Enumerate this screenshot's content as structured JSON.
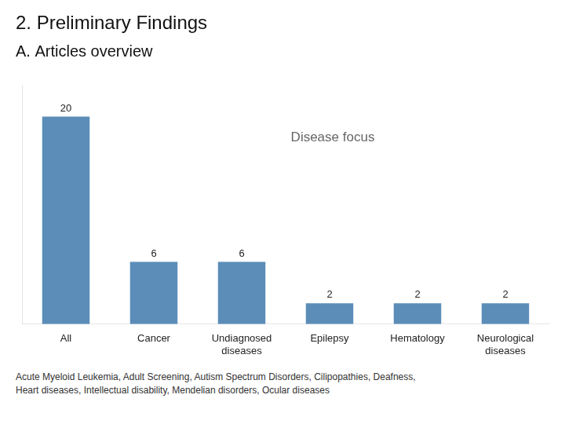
{
  "chart_data": {
    "type": "bar",
    "title": "2. Preliminary Findings",
    "subtitle": "A. Articles overview",
    "categories": [
      "All",
      "Cancer",
      "Undiagnosed\ndiseases",
      "Epilepsy",
      "Hematology",
      "Neurological\ndiseases"
    ],
    "values": [
      20,
      6,
      6,
      2,
      2,
      2
    ],
    "color": "#5B8DB8",
    "ylim": [
      0,
      23
    ],
    "grid": false,
    "tick_labels": "x",
    "data_labels": true,
    "annotations": [
      "Disease focus"
    ],
    "footnote": "Acute Myeloid Leukemia, Adult Screening, Autism Spectrum Disorders, Cilipopathies, Deafness,\nHeart diseases, Intellectual disability, Mendelian disorders, Ocular diseases"
  }
}
